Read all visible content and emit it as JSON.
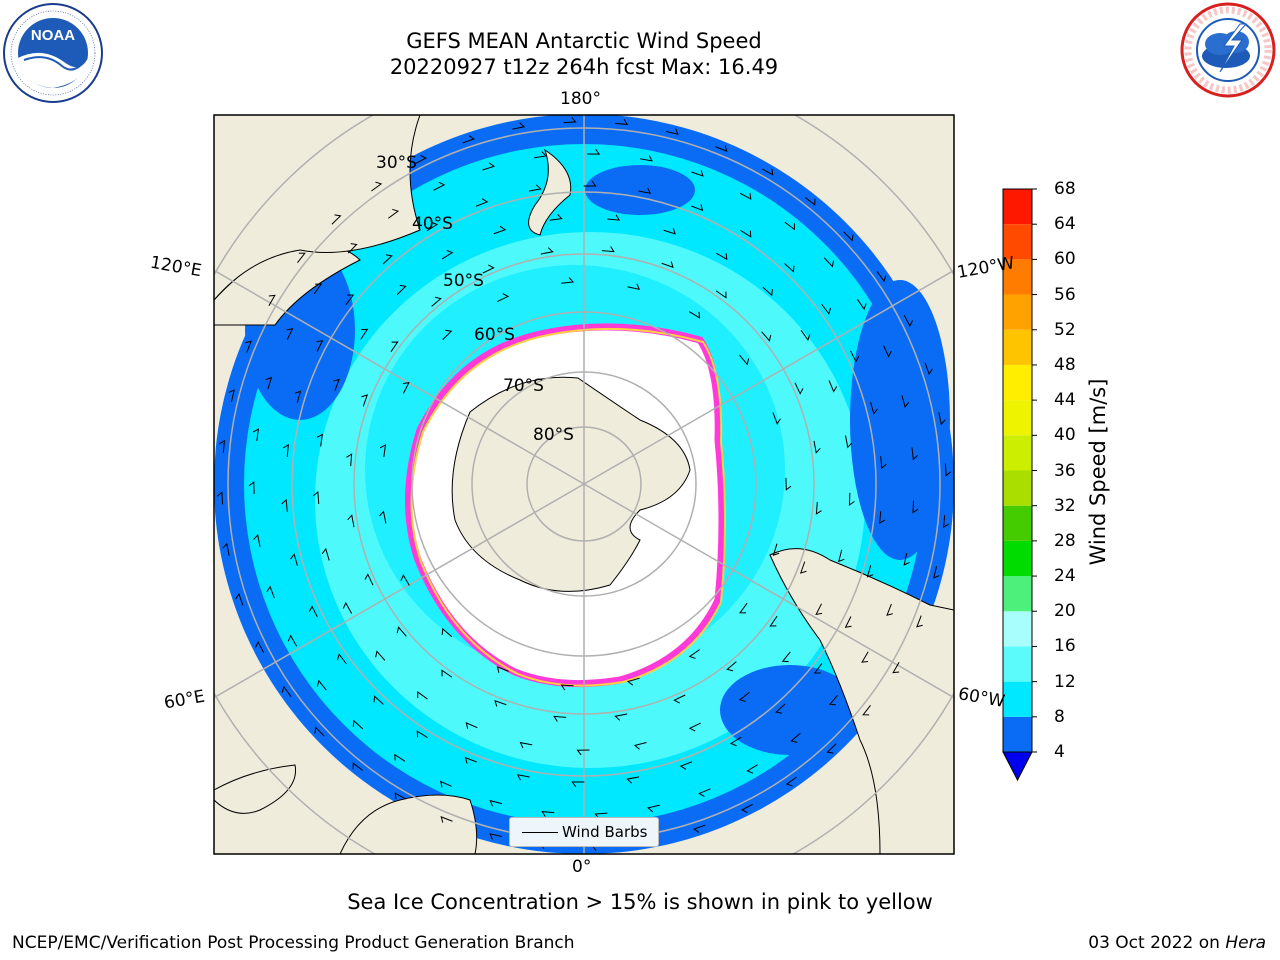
{
  "title": {
    "line1": "GEFS MEAN Antarctic Wind Speed",
    "line2": "20220927 t12z 264h fcst   Max: 16.49"
  },
  "map": {
    "projection": "south polar stereographic",
    "lon_labels": {
      "top": "180°",
      "bottom": "0°",
      "upper_left": "120°E",
      "upper_right": "120°W",
      "lower_left": "60°E",
      "lower_right": "60°W"
    },
    "lat_labels": [
      "30°S",
      "40°S",
      "50°S",
      "60°S",
      "70°S",
      "80°S"
    ]
  },
  "colorbar": {
    "label": "Wind Speed [m/s]",
    "ticks": [
      "4",
      "8",
      "12",
      "16",
      "20",
      "24",
      "28",
      "32",
      "36",
      "40",
      "44",
      "48",
      "52",
      "56",
      "60",
      "64",
      "68"
    ],
    "colors": [
      "#0a6cf5",
      "#00e8ff",
      "#5cfbfb",
      "#a8fdfd",
      "#4cf07a",
      "#00dc00",
      "#44cc00",
      "#aadd00",
      "#ccee00",
      "#eef300",
      "#ffee00",
      "#ffc400",
      "#ffa200",
      "#ff7c00",
      "#ff4a00",
      "#ff1800"
    ],
    "extend_color": "#0000ee"
  },
  "legend": {
    "label": "Wind Barbs"
  },
  "subtitle": "Sea Ice Concentration > 15% is shown in pink to yellow",
  "footer": {
    "left": "NCEP/EMC/Verification Post Processing Product Generation Branch",
    "date": "03 Oct 2022 on",
    "machine": "Hera"
  },
  "logos": {
    "left": "NOAA",
    "right": "NATIONAL WEATHER SERVICE"
  }
}
